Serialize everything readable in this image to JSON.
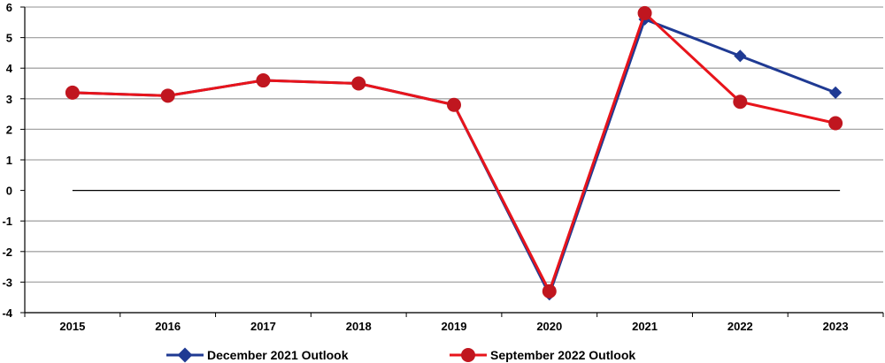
{
  "chart_data": {
    "type": "line",
    "title": "",
    "xlabel": "",
    "ylabel": "",
    "categories": [
      "2015",
      "2016",
      "2017",
      "2018",
      "2019",
      "2020",
      "2021",
      "2022",
      "2023"
    ],
    "ylim": [
      -4,
      6
    ],
    "yticks": [
      -4,
      -3,
      -2,
      -1,
      0,
      1,
      2,
      3,
      4,
      5,
      6
    ],
    "ytick_labels": [
      "-4",
      "-3",
      "-2",
      "-1",
      "0",
      "1",
      "2",
      "3",
      "4",
      "5",
      "6"
    ],
    "grid": true,
    "legend_position": "bottom",
    "series": [
      {
        "name": "December 2021 Outlook",
        "color": "#1f3a93",
        "marker": "diamond",
        "values": [
          3.2,
          3.1,
          3.6,
          3.5,
          2.8,
          -3.4,
          5.6,
          4.4,
          3.2
        ]
      },
      {
        "name": "September 2022 Outlook",
        "color": "#e8141b",
        "marker": "circle",
        "marker_color": "#c0161f",
        "values": [
          3.2,
          3.1,
          3.6,
          3.5,
          2.8,
          -3.3,
          5.8,
          2.9,
          2.2
        ]
      }
    ]
  }
}
